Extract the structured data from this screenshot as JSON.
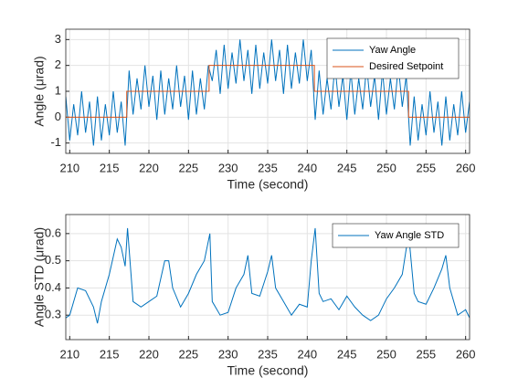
{
  "chart_data": [
    {
      "type": "line",
      "xlabel": "Time (second)",
      "ylabel": "Angle (μrad)",
      "xlim": [
        209.5,
        260.5
      ],
      "xticks": [
        210,
        215,
        220,
        225,
        230,
        235,
        240,
        245,
        250,
        255,
        260
      ],
      "ylim": [
        -1.4,
        3.4
      ],
      "yticks": [
        -1,
        0,
        1,
        2,
        3
      ],
      "grid": true,
      "legend": "northeast",
      "series": [
        {
          "name": "Yaw Angle",
          "color": "#0072BD",
          "x": [
            209.5,
            210,
            210.5,
            211,
            211.5,
            212,
            212.5,
            213,
            213.5,
            214,
            214.5,
            215,
            215.5,
            216,
            216.5,
            217,
            217.5,
            218,
            218.5,
            219,
            219.5,
            220,
            220.5,
            221,
            221.5,
            222,
            222.5,
            223,
            223.5,
            224,
            224.5,
            225,
            225.5,
            226,
            226.5,
            227,
            227.5,
            228,
            228.5,
            229,
            229.5,
            230,
            230.5,
            231,
            231.5,
            232,
            232.5,
            233,
            233.5,
            234,
            234.5,
            235,
            235.5,
            236,
            236.5,
            237,
            237.5,
            238,
            238.5,
            239,
            239.5,
            240,
            240.5,
            241,
            241.5,
            242,
            242.5,
            243,
            243.5,
            244,
            244.5,
            245,
            245.5,
            246,
            246.5,
            247,
            247.5,
            248,
            248.5,
            249,
            249.5,
            250,
            250.5,
            251,
            251.5,
            252,
            252.5,
            253,
            253.5,
            254,
            254.5,
            255,
            255.5,
            256,
            256.5,
            257,
            257.5,
            258,
            258.5,
            259,
            259.5,
            260,
            260.5
          ],
          "values": [
            0.8,
            -0.9,
            0.5,
            -0.7,
            1.0,
            -0.6,
            0.6,
            -1.1,
            0.8,
            -0.9,
            0.5,
            -0.7,
            1.0,
            -0.6,
            0.6,
            -1.1,
            1.8,
            0.1,
            1.5,
            0.3,
            2.0,
            0.4,
            1.6,
            -0.1,
            1.8,
            0.1,
            1.5,
            0.3,
            2.0,
            0.4,
            1.6,
            -0.1,
            1.8,
            0.1,
            1.5,
            0.3,
            2.0,
            1.4,
            2.6,
            0.9,
            2.8,
            1.1,
            2.5,
            1.3,
            3.0,
            1.4,
            2.6,
            0.9,
            2.8,
            1.1,
            2.5,
            1.3,
            3.0,
            1.4,
            2.6,
            0.9,
            2.8,
            1.1,
            2.5,
            1.3,
            3.0,
            1.4,
            2.6,
            -0.1,
            1.8,
            0.1,
            1.5,
            0.3,
            2.0,
            0.4,
            1.6,
            -0.1,
            1.8,
            0.1,
            1.5,
            0.3,
            2.0,
            0.4,
            1.6,
            -0.1,
            1.8,
            0.1,
            1.5,
            0.3,
            2.0,
            0.4,
            1.6,
            -1.1,
            0.8,
            -0.9,
            0.5,
            -0.7,
            1.0,
            -0.6,
            0.6,
            -1.1,
            0.8,
            -0.9,
            0.5,
            -0.7,
            1.0,
            -0.6,
            0.6
          ]
        },
        {
          "name": "Desired Setpoint",
          "color": "#D95319",
          "x": [
            209.5,
            217.2,
            217.2,
            227.6,
            227.6,
            240.9,
            240.9,
            252.8,
            252.8,
            260.5
          ],
          "values": [
            0,
            0,
            1,
            1,
            2,
            2,
            1,
            1,
            0,
            0
          ]
        }
      ]
    },
    {
      "type": "line",
      "xlabel": "Time (second)",
      "ylabel": "Angle STD (μrad)",
      "xlim": [
        209.5,
        260.5
      ],
      "xticks": [
        210,
        215,
        220,
        225,
        230,
        235,
        240,
        245,
        250,
        255,
        260
      ],
      "ylim": [
        0.21,
        0.67
      ],
      "yticks": [
        0.3,
        0.4,
        0.5,
        0.6
      ],
      "grid": true,
      "legend": "northeast",
      "series": [
        {
          "name": "Yaw Angle STD",
          "color": "#0072BD",
          "x": [
            209.5,
            210,
            211,
            212,
            213,
            213.5,
            214,
            215,
            216,
            216.5,
            217,
            217.3,
            218,
            219,
            220,
            221,
            222,
            222.5,
            223,
            224,
            225,
            226,
            227,
            227.7,
            228,
            229,
            230,
            231,
            232,
            232.5,
            233,
            234,
            235,
            235.5,
            236,
            237,
            238,
            239,
            240,
            240.5,
            241,
            241.5,
            242,
            243,
            244,
            245,
            246,
            247,
            248,
            249,
            250,
            251,
            252,
            252.8,
            253.5,
            254,
            255,
            256,
            257,
            257.5,
            258,
            259,
            260,
            260.5
          ],
          "values": [
            0.29,
            0.3,
            0.4,
            0.39,
            0.33,
            0.27,
            0.35,
            0.45,
            0.58,
            0.55,
            0.48,
            0.62,
            0.35,
            0.33,
            0.35,
            0.37,
            0.5,
            0.5,
            0.4,
            0.33,
            0.38,
            0.45,
            0.5,
            0.6,
            0.35,
            0.3,
            0.31,
            0.4,
            0.45,
            0.52,
            0.38,
            0.37,
            0.46,
            0.52,
            0.4,
            0.35,
            0.3,
            0.34,
            0.33,
            0.5,
            0.62,
            0.38,
            0.35,
            0.36,
            0.32,
            0.37,
            0.33,
            0.3,
            0.28,
            0.3,
            0.36,
            0.4,
            0.45,
            0.6,
            0.38,
            0.35,
            0.34,
            0.4,
            0.47,
            0.52,
            0.4,
            0.3,
            0.32,
            0.29
          ]
        }
      ]
    }
  ]
}
